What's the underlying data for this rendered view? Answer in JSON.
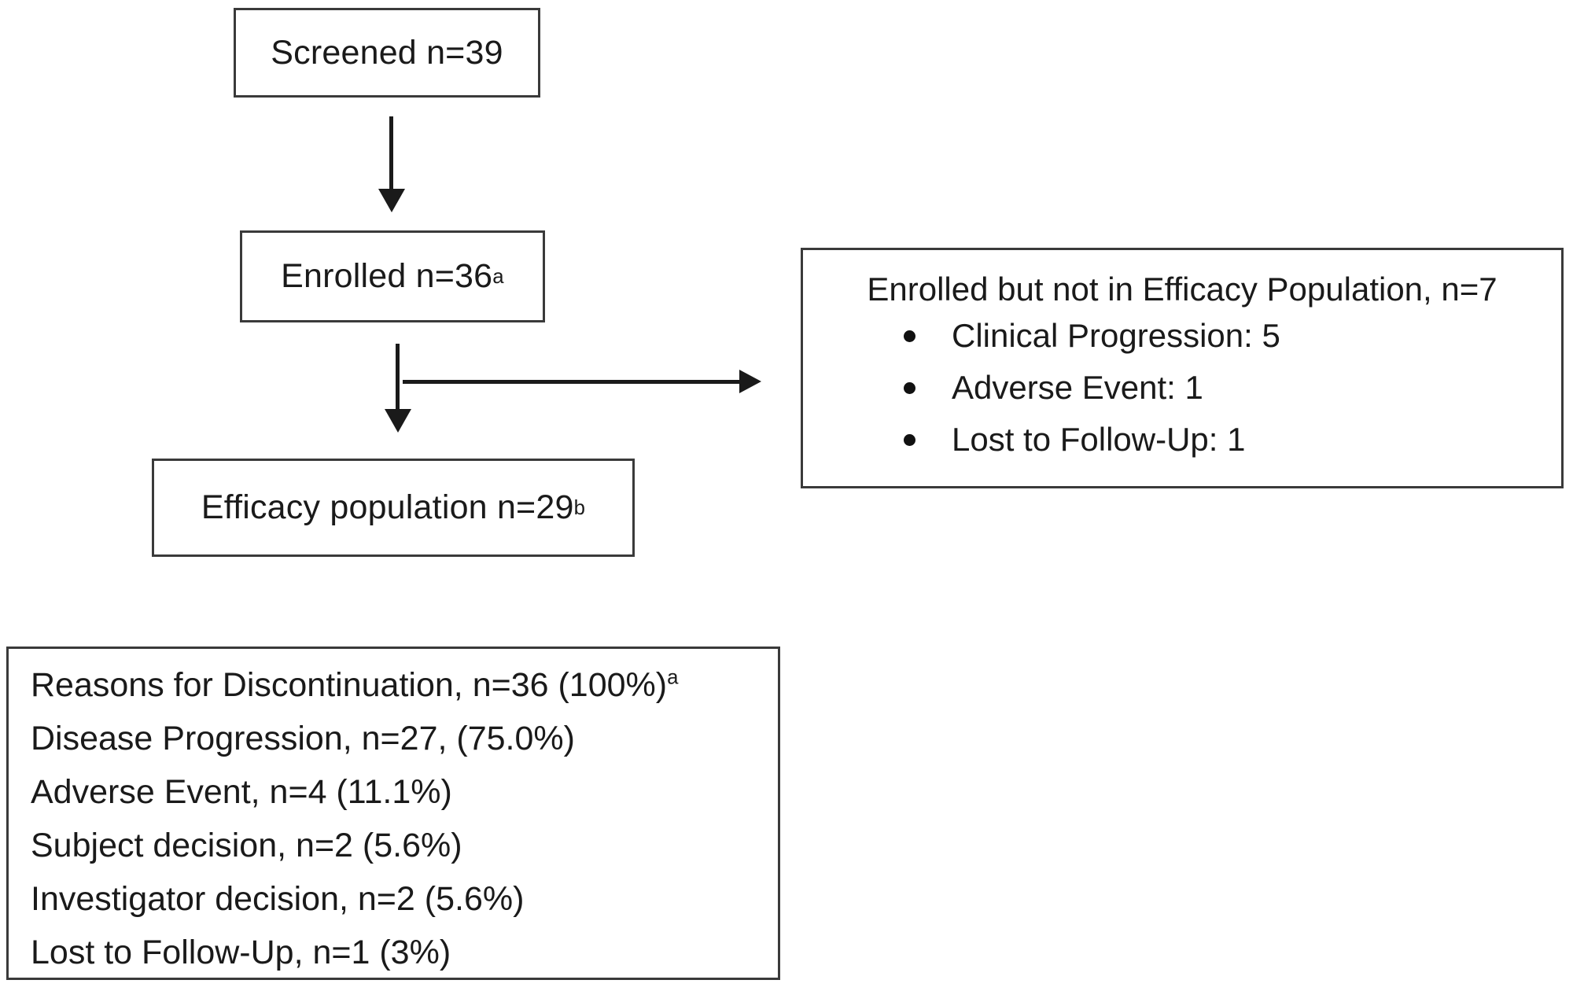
{
  "diagram": {
    "type": "consort-flow",
    "colors": {
      "background": "#ffffff",
      "border": "#3a3a3a",
      "text": "#1a1a1a",
      "arrow": "#1a1a1a"
    },
    "screened": {
      "label": "Screened n=39"
    },
    "enrolled": {
      "label": "Enrolled n=36",
      "sup": "a"
    },
    "efficacy": {
      "label": "Efficacy population n=29",
      "sup": "b"
    },
    "excluded": {
      "title": "Enrolled but not in Efficacy Population, n=7",
      "bullets": [
        "Clinical Progression: 5",
        "Adverse Event: 1",
        "Lost to Follow-Up: 1"
      ]
    },
    "discontinuation": {
      "lines": [
        {
          "text": "Reasons for Discontinuation, n=36 (100%)",
          "sup": "a"
        },
        {
          "text": "Disease Progression, n=27, (75.0%)"
        },
        {
          "text": "Adverse Event, n=4 (11.1%)"
        },
        {
          "text": "Subject decision, n=2 (5.6%)"
        },
        {
          "text": "Investigator decision, n=2 (5.6%)"
        },
        {
          "text": "Lost to Follow-Up, n=1 (3%)"
        }
      ]
    }
  }
}
